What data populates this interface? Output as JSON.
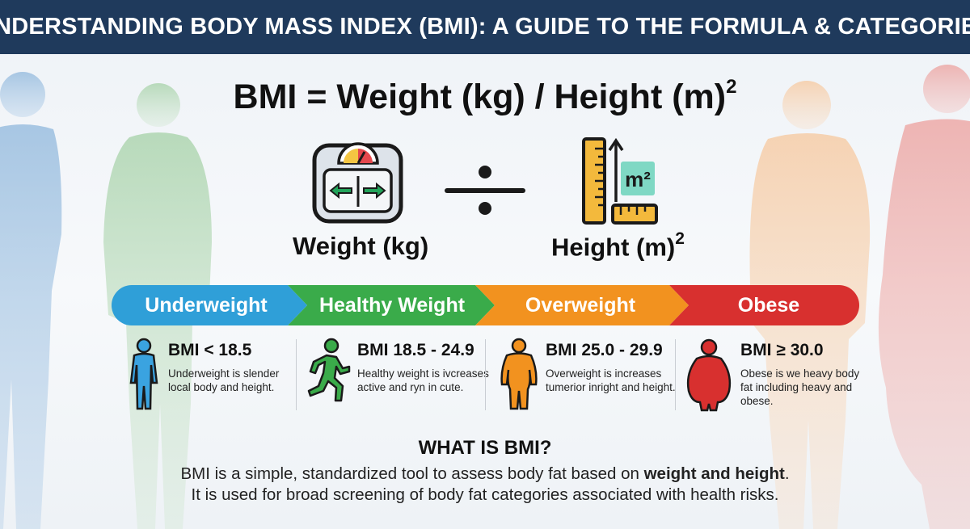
{
  "header": {
    "title": "UNDERSTANDING BODY MASS INDEX (BMI): A GUIDE TO THE FORMULA & CATEGORIES"
  },
  "formula": {
    "text": "BMI = Weight (kg) / Height (m)",
    "exponent": "2"
  },
  "weight": {
    "label": "Weight (kg)",
    "icon": "scale-icon"
  },
  "divide": {
    "icon": "divide-icon"
  },
  "height": {
    "label": "Height (m)",
    "exponent": "2",
    "icon": "ruler-icon",
    "badge": "m²"
  },
  "categories": [
    {
      "name": "Underweight",
      "color": "#2f9fd8",
      "range": "BMI < 18.5",
      "description": "Underweight is slender local body and height.",
      "icon": "standing-person-icon"
    },
    {
      "name": "Healthy Weight",
      "color": "#3aab4a",
      "range": "BMI 18.5 - 24.9",
      "description": "Healthy weight is ivcreases active and ryn in cute.",
      "icon": "running-person-icon"
    },
    {
      "name": "Overweight",
      "color": "#f2921f",
      "range": "BMI 25.0 - 29.9",
      "description": "Overweight is increases tumerior inright and height.",
      "icon": "heavier-person-icon"
    },
    {
      "name": "Obese",
      "color": "#d8302f",
      "range": "BMI ≥ 30.0",
      "description": "Obese is we heavy body fat including heavy and obese.",
      "icon": "obese-person-icon"
    }
  ],
  "what_is": {
    "title": "WHAT IS BMI?",
    "line1_before": "BMI is a simple, standardized tool to assess body fat based on ",
    "line1_bold": "weight and height",
    "line1_after": ".",
    "line2": "It is used for broad screening of body fat categories associated with health risks."
  }
}
